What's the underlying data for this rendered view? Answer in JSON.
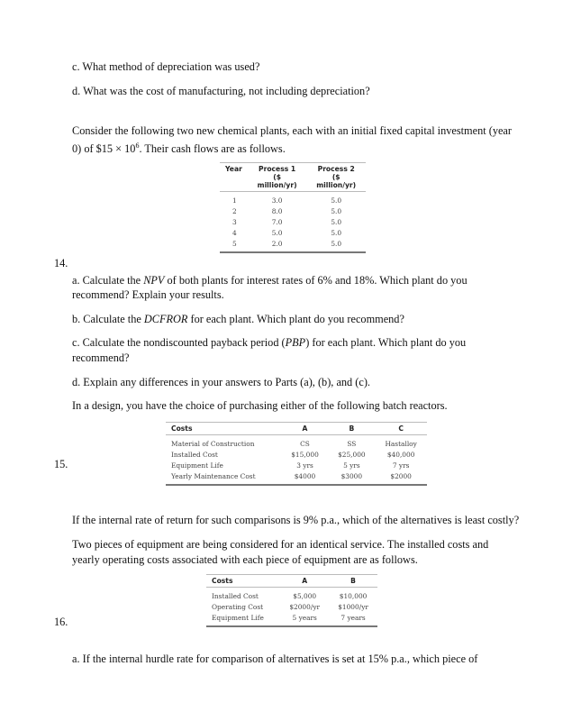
{
  "items_before": [
    {
      "text": "c.  What method of depreciation was used?"
    },
    {
      "text": "d.  What was the cost of manufacturing, not including depreciation?"
    }
  ],
  "q14": {
    "number": "14.",
    "intro_line1": "Consider the following two new chemical plants, each with an initial fixed capital investment (year",
    "intro_line2_pre": "0) of $15 × 10",
    "intro_line2_sup": "6",
    "intro_line2_post": ". Their cash flows are as follows.",
    "table": {
      "headers": [
        "Year",
        "Process 1",
        "Process 2"
      ],
      "subheaders": [
        "",
        "($ million/yr)",
        "($ million/yr)"
      ],
      "rows": [
        [
          "1",
          "3.0",
          "5.0"
        ],
        [
          "2",
          "8.0",
          "5.0"
        ],
        [
          "3",
          "7.0",
          "5.0"
        ],
        [
          "4",
          "5.0",
          "5.0"
        ],
        [
          "5",
          "2.0",
          "5.0"
        ]
      ]
    },
    "a1": [
      "a.  Calculate the ",
      "NPV",
      " of both plants for interest rates of 6% and 18%. Which plant do you"
    ],
    "a2": "recommend? Explain your results.",
    "b": [
      "b.  Calculate the ",
      "DCFROR",
      " for each plant. Which plant do you recommend?"
    ],
    "c1": [
      "c.  Calculate the nondiscounted payback period (",
      "PBP",
      ") for each plant. Which plant do you"
    ],
    "c2": "recommend?",
    "d": "d.  Explain any differences in your answers to Parts (a), (b), and (c)."
  },
  "q15": {
    "number": "15.",
    "intro": "In a design, you have the choice of purchasing either of the following batch reactors.",
    "table": {
      "headers": [
        "Costs",
        "A",
        "B",
        "C"
      ],
      "rows": [
        [
          "Material of Construction",
          "CS",
          "SS",
          "Hastalloy"
        ],
        [
          "Installed Cost",
          "$15,000",
          "$25,000",
          "$40,000"
        ],
        [
          "Equipment Life",
          "3 yrs",
          "5 yrs",
          "7 yrs"
        ],
        [
          "Yearly Maintenance Cost",
          "$4000",
          "$3000",
          "$2000"
        ]
      ]
    },
    "question": "If the internal rate of return for such comparisons is 9% p.a., which of the alternatives is least costly?"
  },
  "q16": {
    "number": "16.",
    "intro_line1": "Two pieces of equipment are being considered for an identical service. The installed costs and",
    "intro_line2": "yearly operating costs associated with each piece of equipment are as follows.",
    "table": {
      "headers": [
        "Costs",
        "A",
        "B"
      ],
      "rows": [
        [
          "Installed Cost",
          "$5,000",
          "$10,000"
        ],
        [
          "Operating Cost",
          "$2000/yr",
          "$1000/yr"
        ],
        [
          "Equipment Life",
          "5 years",
          "7 years"
        ]
      ]
    },
    "a": "a.  If the internal hurdle rate for comparison of alternatives is set at 15% p.a., which piece of"
  }
}
